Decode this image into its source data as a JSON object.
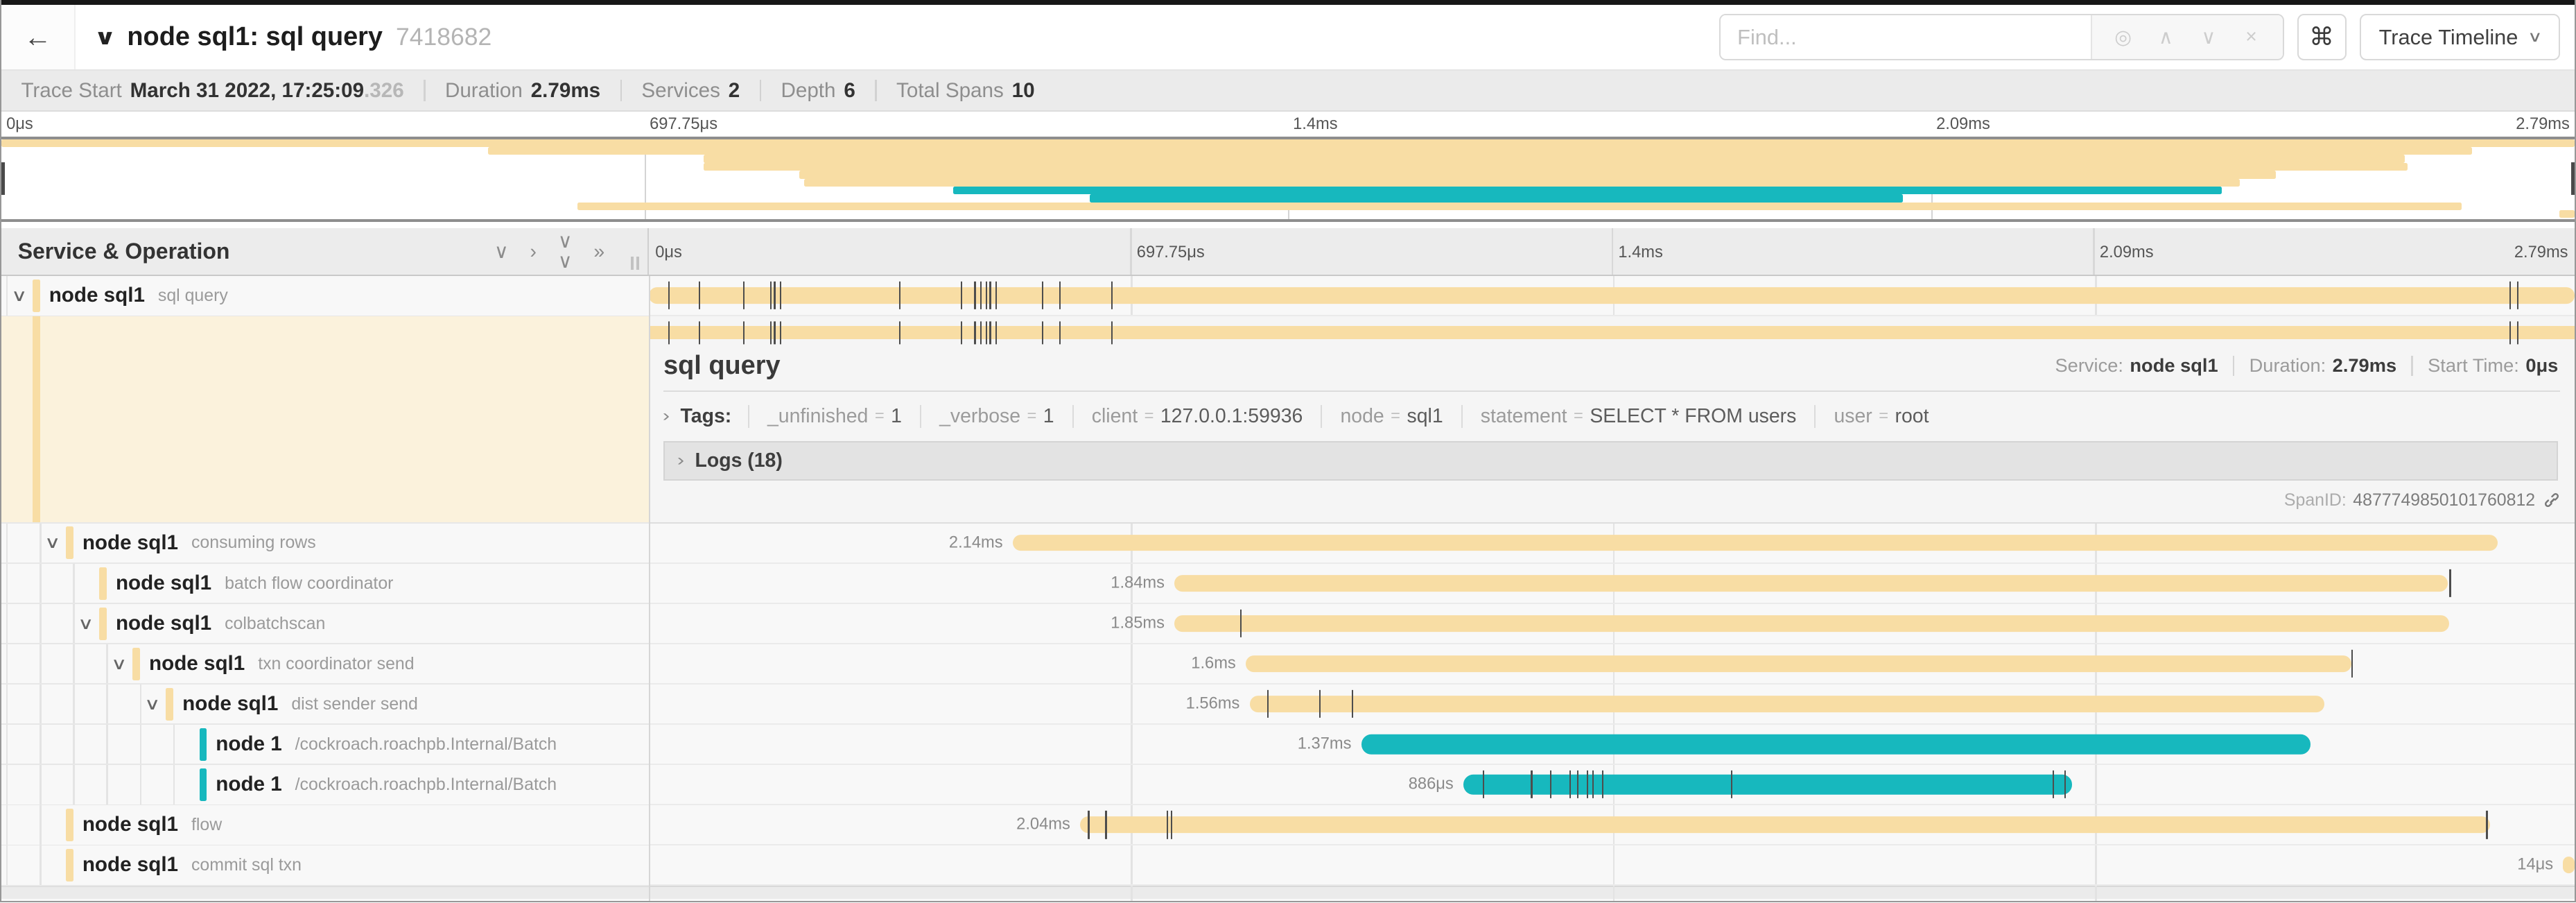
{
  "header": {
    "back_icon": "←",
    "title": "node sql1: sql query",
    "trace_id_short": "7418682",
    "find_placeholder": "Find...",
    "keyboard_icon": "⌘",
    "view_button_label": "Trace Timeline"
  },
  "trace_meta": [
    {
      "label": "Trace Start",
      "value": "March 31 2022, 17:25:09",
      "suffix": ".326"
    },
    {
      "label": "Duration",
      "value": "2.79ms",
      "suffix": ""
    },
    {
      "label": "Services",
      "value": "2",
      "suffix": ""
    },
    {
      "label": "Depth",
      "value": "6",
      "suffix": ""
    },
    {
      "label": "Total Spans",
      "value": "10",
      "suffix": ""
    }
  ],
  "time_axis": {
    "ticks": [
      "0μs",
      "697.75μs",
      "1.4ms",
      "2.09ms",
      "2.79ms"
    ],
    "positions": [
      0,
      25,
      50,
      75,
      100
    ]
  },
  "left_header": {
    "title": "Service & Operation",
    "collapse_icons": [
      "chevron-down",
      "chevron-right",
      "double-chevron-down",
      "double-chevron-right"
    ]
  },
  "colors": {
    "tan": "#F8DDA4",
    "teal": "#17B8BE"
  },
  "spans": [
    {
      "service": "node sql1",
      "operation": "sql query",
      "depth": 0,
      "color": "tan",
      "expander": true,
      "start": 0,
      "width": 100,
      "duration": "",
      "ticks": [
        1.0,
        2.6,
        4.9,
        6.3,
        6.5,
        6.8,
        13.0,
        16.2,
        16.9,
        17.2,
        17.5,
        17.7,
        18.0,
        20.4,
        21.3,
        24.0,
        96.6,
        97.0
      ],
      "selected": true
    },
    {
      "service": "node sql1",
      "operation": "consuming rows",
      "depth": 1,
      "color": "tan",
      "expander": true,
      "start": 18.9,
      "width": 77.1,
      "duration": "2.14ms",
      "ticks": []
    },
    {
      "service": "node sql1",
      "operation": "batch flow coordinator",
      "depth": 2,
      "color": "tan",
      "expander": false,
      "start": 27.3,
      "width": 66.1,
      "duration": "1.84ms",
      "ticks": [
        93.5
      ]
    },
    {
      "service": "node sql1",
      "operation": "colbatchscan",
      "depth": 2,
      "color": "tan",
      "expander": true,
      "start": 27.3,
      "width": 66.2,
      "duration": "1.85ms",
      "ticks": [
        30.7
      ]
    },
    {
      "service": "node sql1",
      "operation": "txn coordinator send",
      "depth": 3,
      "color": "tan",
      "expander": true,
      "start": 31.0,
      "width": 57.4,
      "duration": "1.6ms",
      "ticks": [
        88.4
      ]
    },
    {
      "service": "node sql1",
      "operation": "dist sender send",
      "depth": 4,
      "color": "tan",
      "expander": true,
      "start": 31.2,
      "width": 55.8,
      "duration": "1.56ms",
      "ticks": [
        32.1,
        34.8,
        36.5
      ]
    },
    {
      "service": "node 1",
      "operation": "/cockroach.roachpb.Internal/Batch",
      "depth": 5,
      "color": "teal",
      "expander": false,
      "start": 37.0,
      "width": 49.3,
      "duration": "1.37ms",
      "ticks": []
    },
    {
      "service": "node 1",
      "operation": "/cockroach.roachpb.Internal/Batch",
      "depth": 5,
      "color": "teal",
      "expander": false,
      "start": 42.3,
      "width": 31.6,
      "duration": "886μs",
      "ticks": [
        43.3,
        45.8,
        46.8,
        47.8,
        48.2,
        48.7,
        49.0,
        49.5,
        56.2,
        72.9,
        73.5
      ]
    },
    {
      "service": "node sql1",
      "operation": "flow",
      "depth": 1,
      "color": "tan",
      "expander": false,
      "start": 22.4,
      "width": 73.2,
      "duration": "2.04ms",
      "ticks": [
        22.8,
        23.7,
        26.9,
        27.1,
        95.4
      ]
    },
    {
      "service": "node sql1",
      "operation": "commit sql txn",
      "depth": 1,
      "color": "tan",
      "expander": false,
      "start": 99.4,
      "width": 0.6,
      "duration": "14μs",
      "ticks": []
    }
  ],
  "detail": {
    "title": "sql query",
    "meta": [
      {
        "label": "Service:",
        "value": "node sql1"
      },
      {
        "label": "Duration:",
        "value": "2.79ms"
      },
      {
        "label": "Start Time:",
        "value": "0μs"
      }
    ],
    "tags_label": "Tags:",
    "tags": [
      {
        "key": "_unfinished",
        "value": "1"
      },
      {
        "key": "_verbose",
        "value": "1"
      },
      {
        "key": "client",
        "value": "127.0.0.1:59936"
      },
      {
        "key": "node",
        "value": "sql1"
      },
      {
        "key": "statement",
        "value": "SELECT * FROM users"
      },
      {
        "key": "user",
        "value": "root"
      }
    ],
    "logs_label": "Logs (18)",
    "spanid_label": "SpanID:",
    "spanid_value": "4877749850101760812"
  }
}
